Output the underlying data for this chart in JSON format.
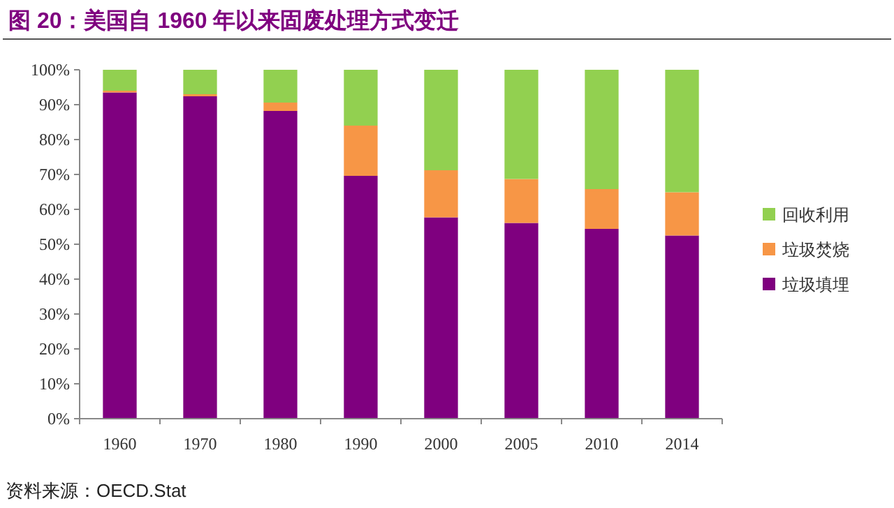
{
  "chart_data": {
    "type": "bar",
    "title": "图 20：美国自 1960 年以来固废处理方式变迁",
    "annotations": [
      "资料来源：OECD.Stat"
    ],
    "categories": [
      "1960",
      "1970",
      "1980",
      "1990",
      "2000",
      "2005",
      "2010",
      "2014"
    ],
    "stacked": true,
    "legend": "right",
    "ylim": [
      0,
      100
    ],
    "yticks": [
      {
        "value": 0,
        "label": "0%"
      },
      {
        "value": 10,
        "label": "10%"
      },
      {
        "value": 20,
        "label": "20%"
      },
      {
        "value": 30,
        "label": "30%"
      },
      {
        "value": 40,
        "label": "40%"
      },
      {
        "value": 50,
        "label": "50%"
      },
      {
        "value": 60,
        "label": "60%"
      },
      {
        "value": 70,
        "label": "70%"
      },
      {
        "value": 80,
        "label": "80%"
      },
      {
        "value": 90,
        "label": "90%"
      },
      {
        "value": 100,
        "label": "100%"
      }
    ],
    "series": [
      {
        "name": "垃圾填埋",
        "color": "#7f007f",
        "values": [
          93.5,
          92.4,
          88.2,
          69.6,
          57.7,
          56.1,
          54.4,
          52.5
        ]
      },
      {
        "name": "垃圾焚烧",
        "color": "#f79646",
        "values": [
          0.5,
          0.6,
          2.4,
          14.4,
          13.5,
          12.6,
          11.4,
          12.4
        ]
      },
      {
        "name": "回收利用",
        "color": "#92d050",
        "values": [
          6,
          7,
          9.4,
          16,
          28.8,
          31.3,
          34.2,
          35.1
        ]
      }
    ]
  }
}
